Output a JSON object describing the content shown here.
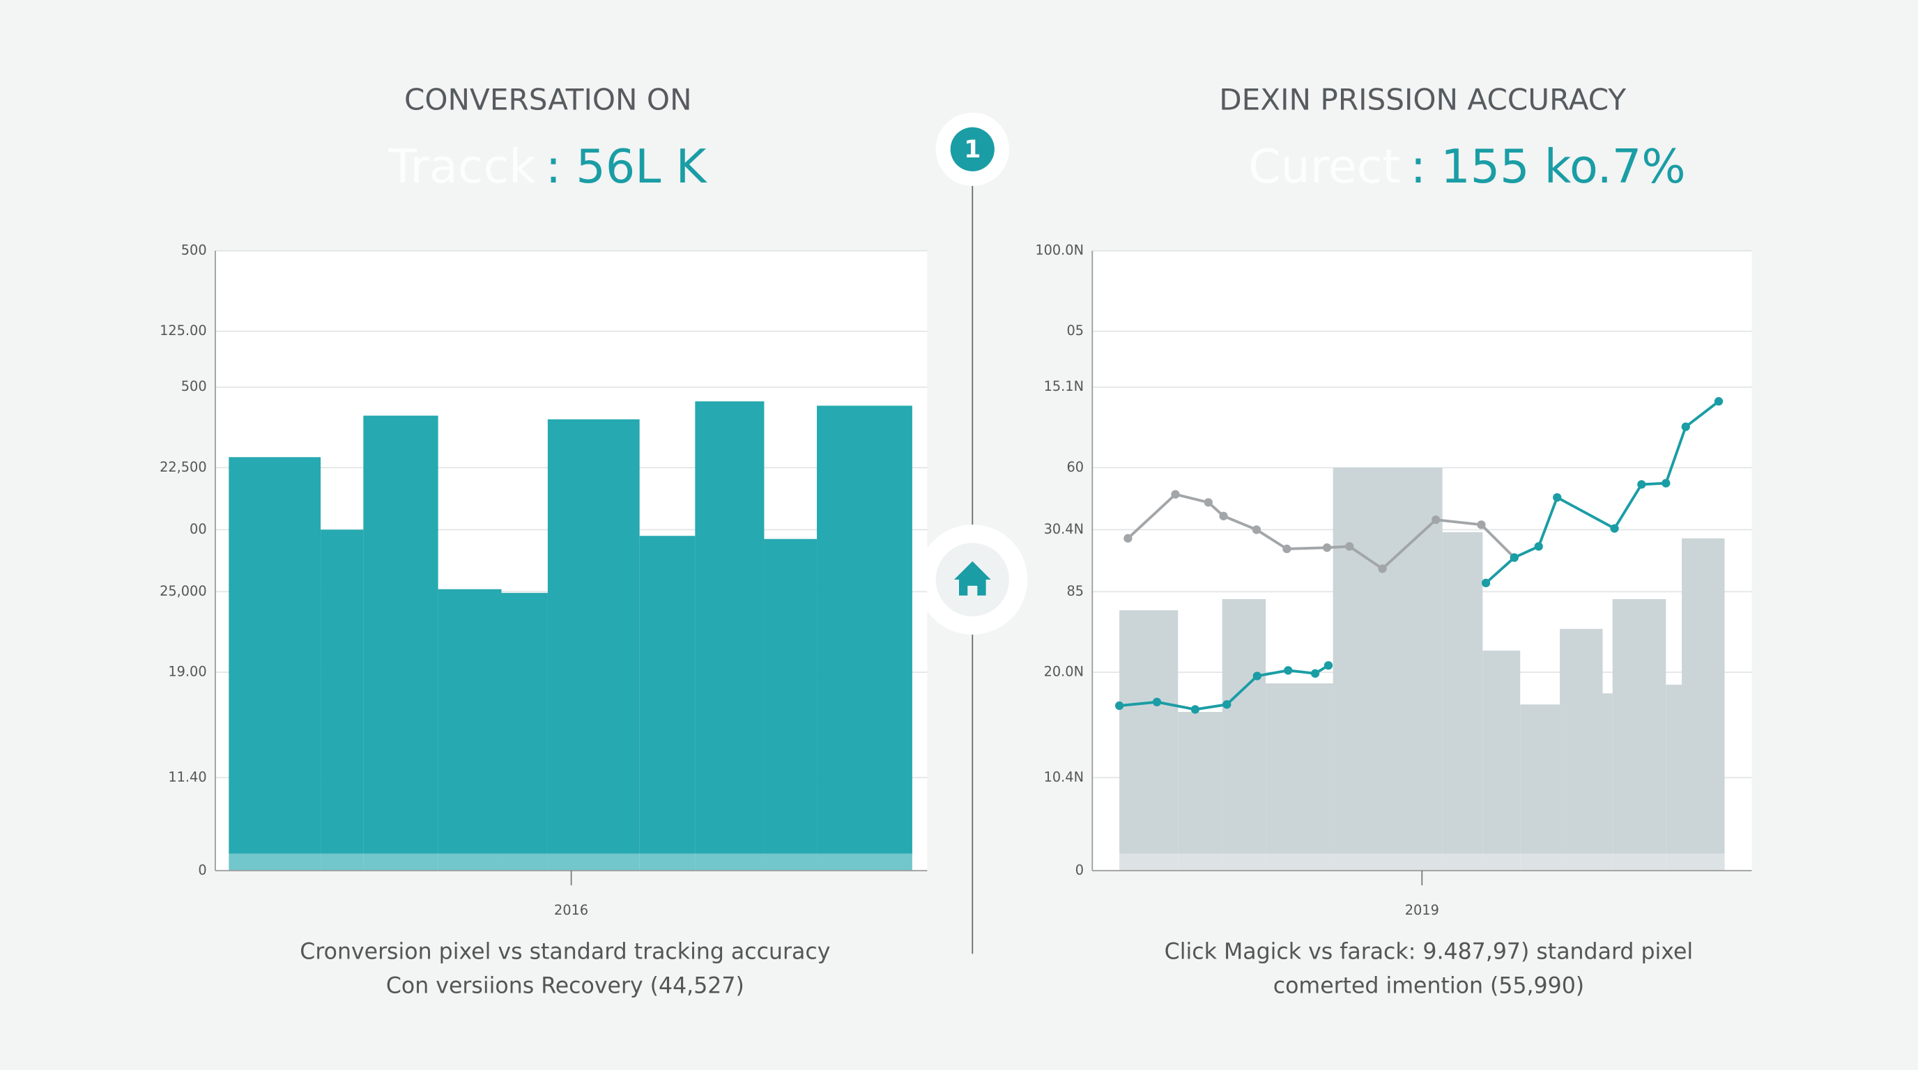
{
  "badge": "1",
  "chart_data": [
    {
      "type": "histogram",
      "title": "CONVERSATION ON",
      "headline_label": "Tracck",
      "headline_value": ": 56L K",
      "bins": [
        1.9,
        14.8,
        20.8,
        31.3,
        40.2,
        46.7,
        59.6,
        67.4,
        77.1,
        84.5,
        97.9
      ],
      "values": [
        66.7,
        55,
        73.4,
        45.4,
        44.8,
        72.8,
        54,
        75.7,
        53.5,
        75
      ],
      "color": "#26a9b0",
      "xlim": [
        0,
        100
      ],
      "xticks": [
        {
          "value": 50,
          "label": "2016"
        }
      ],
      "ylim": [
        0,
        100
      ],
      "yticks": [
        0,
        {
          "value": 15,
          "label": "11.40"
        },
        {
          "value": 32,
          "label": "19.00"
        },
        {
          "value": 45,
          "label": "25,000"
        },
        {
          "value": 55,
          "label": "00"
        },
        {
          "value": 65,
          "label": "22,500"
        },
        {
          "value": 78,
          "label": "500"
        },
        {
          "value": 87,
          "label": "125.00"
        },
        {
          "value": 100,
          "label": "500"
        }
      ],
      "grid": true,
      "caption": [
        "Cronversion pixel  vs standard tracking accuracy",
        "Con versiions Recovery (44,527)"
      ]
    },
    {
      "type": "line",
      "title": "DEXIN PRISSION ACCURACY",
      "headline_label": "Curect",
      "headline_value": ": 155 ko.7%",
      "bars": {
        "bins": [
          4.1,
          13,
          19.7,
          26.3,
          36.5,
          53.1,
          59.2,
          64.9,
          70.9,
          77.4,
          78.9,
          87,
          89.4,
          95.9
        ],
        "values": [
          42,
          25.6,
          43.8,
          30.2,
          65,
          54.6,
          35.5,
          26.8,
          39,
          28.6,
          43.8,
          30,
          53.6
        ],
        "color": "#cbd5d8"
      },
      "series": [
        {
          "color": "#a2a6a8",
          "x": [
            5.4,
            12.6,
            17.6,
            19.9,
            24.9,
            29.5,
            35.6,
            39,
            44,
            52.1,
            59,
            64
          ],
          "values": [
            53.6,
            60.7,
            59.4,
            57.2,
            55,
            51.9,
            52.1,
            52.3,
            48.7,
            56.6,
            55.8,
            50.5
          ]
        },
        {
          "color": "#1a9da5",
          "x": [
            4.1,
            9.8,
            15.6,
            20.4,
            25,
            29.7,
            33.8,
            35.8,
            null,
            59.7,
            64,
            67.7,
            70.5,
            79.2,
            83.3,
            87,
            90,
            95
          ],
          "values": [
            26.6,
            27.2,
            26,
            26.8,
            31.4,
            32.3,
            31.8,
            33.1,
            null,
            46.4,
            50.5,
            52.3,
            60.2,
            55.2,
            62.3,
            62.5,
            71.6,
            75.7
          ]
        }
      ],
      "xlim": [
        0,
        100
      ],
      "xticks": [
        {
          "value": 50,
          "label": "2019"
        }
      ],
      "ylim": [
        0,
        100
      ],
      "yticks": [
        0,
        {
          "value": 15,
          "label": "10.4N"
        },
        {
          "value": 32,
          "label": "20.0N"
        },
        {
          "value": 45,
          "label": "85"
        },
        {
          "value": 55,
          "label": "30.4N"
        },
        {
          "value": 65,
          "label": "60"
        },
        {
          "value": 78,
          "label": "15.1N"
        },
        {
          "value": 87,
          "label": "05"
        },
        {
          "value": 100,
          "label": "100.0N"
        }
      ],
      "grid": true,
      "caption": [
        "Click Magick vs farack: 9.487,97) standard pixel",
        "comerted imention (55,990)"
      ]
    }
  ]
}
